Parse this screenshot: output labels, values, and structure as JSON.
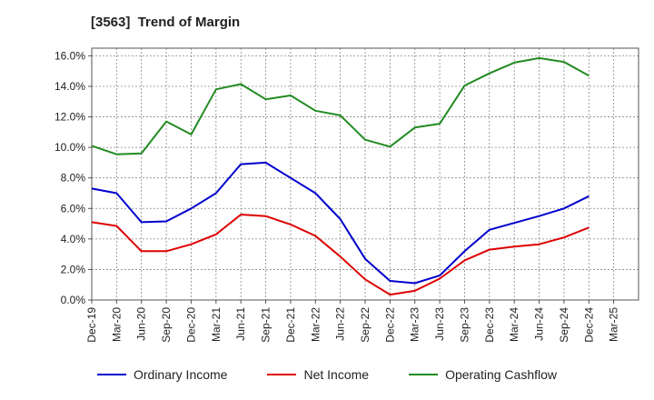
{
  "title": "[3563]  Trend of Margin",
  "chart_data": {
    "type": "line",
    "title": "[3563]  Trend of Margin",
    "xlabel": "",
    "ylabel": "",
    "x": [
      "Dec-19",
      "Mar-20",
      "Jun-20",
      "Sep-20",
      "Dec-20",
      "Mar-21",
      "Jun-21",
      "Sep-21",
      "Dec-21",
      "Mar-22",
      "Jun-22",
      "Sep-22",
      "Dec-22",
      "Mar-23",
      "Jun-23",
      "Sep-23",
      "Dec-23",
      "Mar-24",
      "Jun-24",
      "Sep-24",
      "Dec-24",
      "Mar-25"
    ],
    "ylim": [
      0,
      16.5
    ],
    "yticks": [
      0,
      2,
      4,
      6,
      8,
      10,
      12,
      14,
      16
    ],
    "ytick_labels": [
      "0.0%",
      "2.0%",
      "4.0%",
      "6.0%",
      "8.0%",
      "10.0%",
      "12.0%",
      "14.0%",
      "16.0%"
    ],
    "grid": true,
    "legend_position": "bottom",
    "series": [
      {
        "name": "Ordinary Income",
        "color": "#0000cc",
        "values": [
          7.3,
          7.0,
          5.1,
          5.15,
          6.0,
          7.0,
          8.9,
          9.0,
          8.0,
          7.0,
          5.3,
          2.7,
          1.25,
          1.1,
          1.6,
          3.2,
          4.6,
          5.05,
          5.5,
          6.0,
          6.8,
          null
        ]
      },
      {
        "name": "Net Income",
        "color": "#dd0000",
        "values": [
          5.1,
          4.85,
          3.2,
          3.2,
          3.65,
          4.3,
          5.6,
          5.5,
          4.95,
          4.2,
          2.85,
          1.35,
          0.35,
          0.6,
          1.4,
          2.6,
          3.3,
          3.5,
          3.65,
          4.1,
          4.75,
          null
        ]
      },
      {
        "name": "Operating Cashflow",
        "color": "#228b22",
        "values": [
          10.1,
          9.55,
          9.6,
          11.7,
          10.85,
          13.8,
          14.15,
          13.15,
          13.4,
          12.4,
          12.1,
          10.5,
          10.05,
          11.3,
          11.55,
          14.05,
          14.85,
          15.55,
          15.85,
          15.6,
          14.7,
          null
        ]
      }
    ]
  }
}
